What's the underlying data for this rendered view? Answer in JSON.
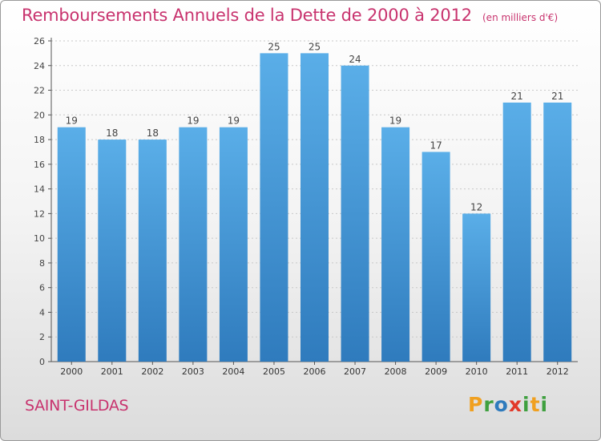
{
  "header": {
    "title": "Remboursements Annuels de la Dette de 2000 à 2012",
    "unit": "(en milliers d'€)"
  },
  "footer": {
    "city": "SAINT-GILDAS",
    "brand": "Proxiti"
  },
  "colors": {
    "title": "#c8336e",
    "bar_top": "#5aaee8",
    "bar_bottom": "#2f7bbd",
    "brand_letters": [
      "#f0a020",
      "#3fa03f",
      "#2f7bbd",
      "#e23a2a",
      "#3fa03f",
      "#f0a020",
      "#3fa03f"
    ]
  },
  "chart_data": {
    "type": "bar",
    "title": "Remboursements Annuels de la Dette de 2000 à 2012",
    "categories": [
      "2000",
      "2001",
      "2002",
      "2003",
      "2004",
      "2005",
      "2006",
      "2007",
      "2008",
      "2009",
      "2010",
      "2011",
      "2012"
    ],
    "values": [
      19,
      18,
      18,
      19,
      19,
      25,
      25,
      24,
      19,
      17,
      12,
      21,
      21
    ],
    "ylim": [
      0,
      26
    ],
    "yticks": [
      0,
      2,
      4,
      6,
      8,
      10,
      12,
      14,
      16,
      18,
      20,
      22,
      24,
      26
    ],
    "grid": true,
    "legend": "none"
  }
}
